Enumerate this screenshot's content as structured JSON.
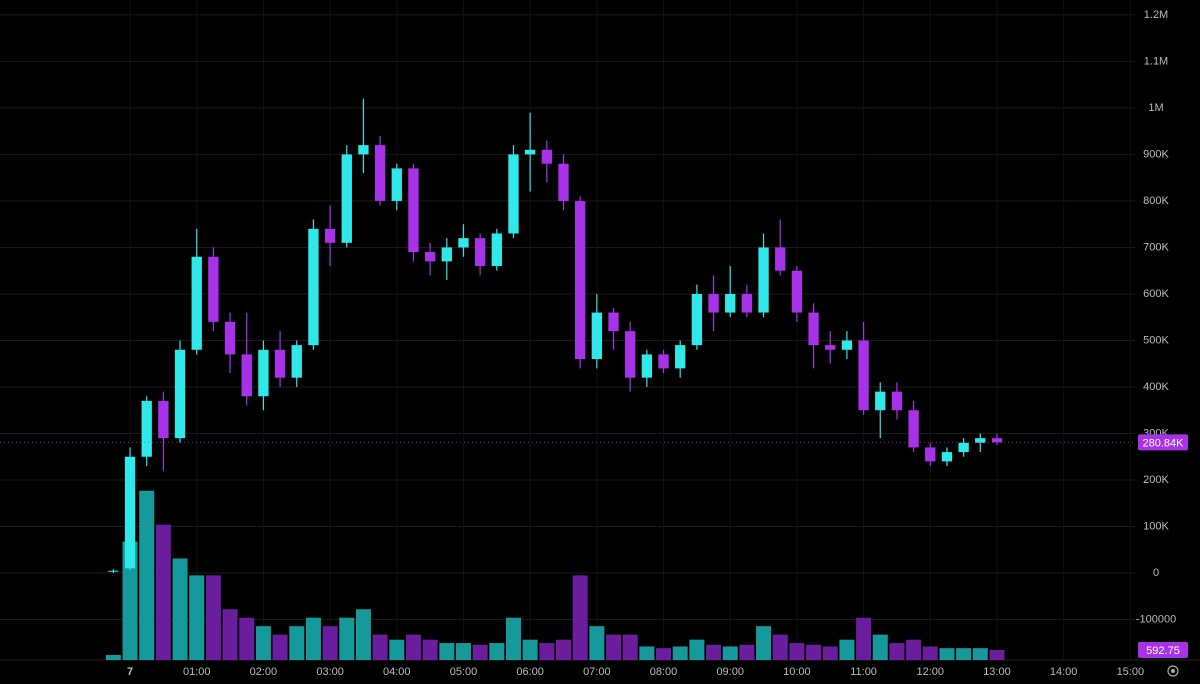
{
  "chart_data": {
    "type": "candlestick",
    "x": [
      -0.25,
      0,
      0.25,
      0.5,
      0.75,
      1,
      1.25,
      1.5,
      1.75,
      2,
      2.25,
      2.5,
      2.75,
      3,
      3.25,
      3.5,
      3.75,
      4,
      4.25,
      4.5,
      4.75,
      5,
      5.25,
      5.5,
      5.75,
      6,
      6.25,
      6.5,
      6.75,
      7,
      7.25,
      7.5,
      7.75,
      8,
      8.25,
      8.5,
      8.75,
      9,
      9.25,
      9.5,
      9.75,
      10,
      10.25,
      10.5,
      10.75,
      11,
      11.25,
      11.5,
      11.75,
      12,
      12.25,
      12.5,
      12.75,
      13
    ],
    "open": [
      5000,
      10000,
      250000,
      370000,
      290000,
      480000,
      680000,
      540000,
      470000,
      380000,
      480000,
      420000,
      490000,
      740000,
      710000,
      900000,
      920000,
      800000,
      870000,
      690000,
      670000,
      700000,
      720000,
      660000,
      730000,
      900000,
      910000,
      880000,
      800000,
      460000,
      560000,
      520000,
      420000,
      470000,
      440000,
      490000,
      600000,
      560000,
      600000,
      560000,
      700000,
      650000,
      560000,
      490000,
      480000,
      500000,
      350000,
      390000,
      350000,
      270000,
      240000,
      260000,
      280000,
      290000
    ],
    "high": [
      8000,
      270000,
      380000,
      390000,
      500000,
      740000,
      700000,
      560000,
      560000,
      500000,
      520000,
      500000,
      760000,
      790000,
      920000,
      1020000,
      940000,
      880000,
      880000,
      710000,
      720000,
      750000,
      730000,
      740000,
      920000,
      990000,
      930000,
      900000,
      810000,
      600000,
      570000,
      540000,
      480000,
      480000,
      500000,
      620000,
      640000,
      660000,
      620000,
      730000,
      760000,
      660000,
      580000,
      520000,
      520000,
      540000,
      410000,
      410000,
      370000,
      280000,
      270000,
      290000,
      300000,
      300000
    ],
    "low": [
      0,
      5000,
      230000,
      220000,
      280000,
      470000,
      520000,
      430000,
      360000,
      350000,
      400000,
      400000,
      480000,
      660000,
      700000,
      860000,
      790000,
      780000,
      670000,
      640000,
      630000,
      680000,
      640000,
      650000,
      720000,
      820000,
      840000,
      780000,
      440000,
      440000,
      480000,
      390000,
      400000,
      430000,
      420000,
      480000,
      520000,
      550000,
      550000,
      550000,
      640000,
      540000,
      440000,
      450000,
      460000,
      340000,
      290000,
      330000,
      260000,
      230000,
      230000,
      250000,
      260000,
      275000
    ],
    "close": [
      5000,
      250000,
      370000,
      290000,
      480000,
      680000,
      540000,
      470000,
      380000,
      480000,
      420000,
      490000,
      740000,
      710000,
      900000,
      920000,
      800000,
      870000,
      690000,
      670000,
      700000,
      720000,
      660000,
      730000,
      900000,
      910000,
      880000,
      800000,
      460000,
      560000,
      520000,
      420000,
      470000,
      440000,
      490000,
      600000,
      560000,
      600000,
      560000,
      700000,
      650000,
      560000,
      490000,
      480000,
      500000,
      350000,
      390000,
      350000,
      270000,
      240000,
      260000,
      280000,
      290000,
      280840
    ],
    "volume": [
      300,
      7000,
      10000,
      8000,
      6000,
      5000,
      5000,
      3000,
      2500,
      2000,
      1500,
      2000,
      2500,
      2000,
      2500,
      3000,
      1500,
      1200,
      1500,
      1200,
      1000,
      1000,
      900,
      1000,
      2500,
      1200,
      1000,
      1200,
      5000,
      2000,
      1500,
      1500,
      800,
      700,
      800,
      1200,
      900,
      800,
      900,
      2000,
      1500,
      1000,
      900,
      800,
      1200,
      2500,
      1500,
      1000,
      1200,
      800,
      700,
      700,
      700,
      592.75
    ],
    "up_color": "#2ee8ea",
    "down_color": "#a832e8",
    "volume_up_color": "#16999b",
    "volume_down_color": "#6a1d9c",
    "last_price": {
      "value": 280840,
      "label": "280.84K"
    },
    "last_volume": {
      "value": 592.75,
      "label": "592.75"
    },
    "xlim": [
      -1.95,
      15.07
    ],
    "xticks": [
      {
        "value": 0,
        "label": "7"
      },
      {
        "value": 1,
        "label": "01:00"
      },
      {
        "value": 2,
        "label": "02:00"
      },
      {
        "value": 3,
        "label": "03:00"
      },
      {
        "value": 4,
        "label": "04:00"
      },
      {
        "value": 5,
        "label": "05:00"
      },
      {
        "value": 6,
        "label": "06:00"
      },
      {
        "value": 7,
        "label": "07:00"
      },
      {
        "value": 8,
        "label": "08:00"
      },
      {
        "value": 9,
        "label": "09:00"
      },
      {
        "value": 10,
        "label": "10:00"
      },
      {
        "value": 11,
        "label": "11:00"
      },
      {
        "value": 12,
        "label": "12:00"
      },
      {
        "value": 13,
        "label": "13:00"
      },
      {
        "value": 14,
        "label": "14:00"
      },
      {
        "value": 15,
        "label": "15:00"
      }
    ],
    "ylim": [
      -187000,
      1232000
    ],
    "yticks": [
      -100000,
      0,
      {
        "value": 100000,
        "label": "100K"
      },
      {
        "value": 200000,
        "label": "200K"
      },
      {
        "value": 300000,
        "label": "300K"
      },
      {
        "value": 400000,
        "label": "400K"
      },
      {
        "value": 500000,
        "label": "500K"
      },
      {
        "value": 600000,
        "label": "600K"
      },
      {
        "value": 700000,
        "label": "700K"
      },
      {
        "value": 800000,
        "label": "800K"
      },
      {
        "value": 900000,
        "label": "900K"
      },
      {
        "value": 1000000,
        "label": "1M"
      },
      {
        "value": 1100000,
        "label": "1.1M"
      },
      {
        "value": 1200000,
        "label": "1.2M"
      }
    ],
    "y2lim": [
      0,
      39000
    ],
    "grid": true
  }
}
